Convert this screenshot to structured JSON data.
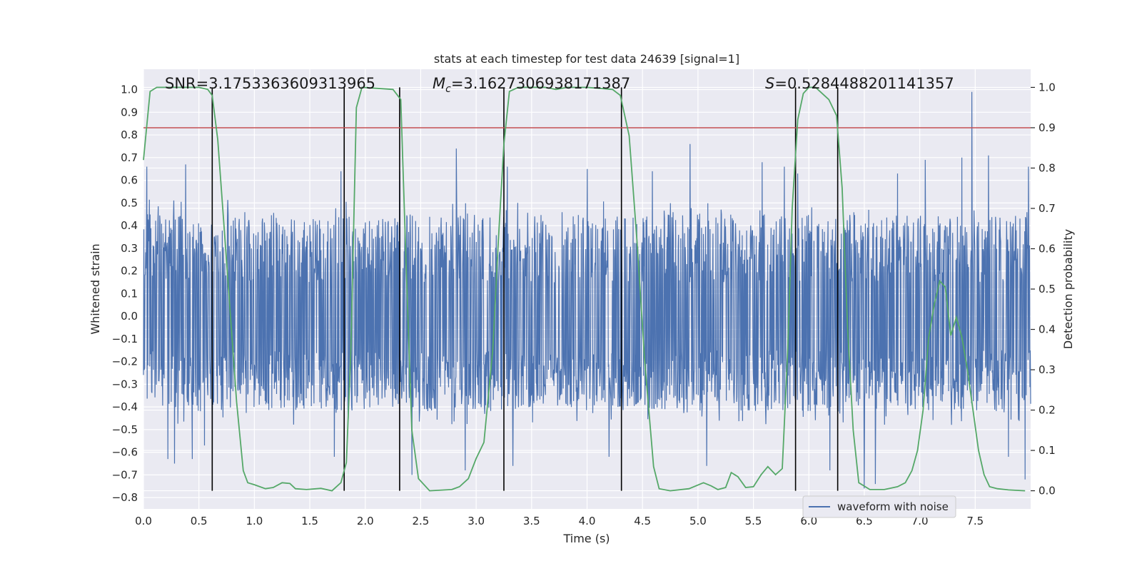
{
  "chart_data": {
    "type": "line",
    "title": "stats at each timestep for test data 24639 [signal=1]",
    "xlabel": "Time (s)",
    "ylabel": "Whitened strain",
    "y2label": "Detection probability",
    "xlim": [
      0.0,
      8.0
    ],
    "ylim": [
      -0.85,
      1.09
    ],
    "y2lim": [
      -0.045,
      1.045
    ],
    "x_ticks": [
      "0.0",
      "0.5",
      "1.0",
      "1.5",
      "2.0",
      "2.5",
      "3.0",
      "3.5",
      "4.0",
      "4.5",
      "5.0",
      "5.5",
      "6.0",
      "6.5",
      "7.0",
      "7.5"
    ],
    "y_ticks": [
      "1.0",
      "0.9",
      "0.8",
      "0.7",
      "0.6",
      "0.5",
      "0.4",
      "0.3",
      "0.2",
      "0.1",
      "0.0",
      "−0.1",
      "−0.2",
      "−0.3",
      "−0.4",
      "−0.5",
      "−0.6",
      "−0.7",
      "−0.8"
    ],
    "y2_ticks": [
      "1.0",
      "0.9",
      "0.8",
      "0.7",
      "0.6",
      "0.5",
      "0.4",
      "0.3",
      "0.2",
      "0.1",
      "0.0"
    ],
    "grid": true,
    "legend_position": "bottom-right",
    "annotations": {
      "snr": "SNR=3.1753363609313965",
      "mc_symbol": "M",
      "mc_sub": "c",
      "mc_value": "=3.1627306938171387",
      "s_symbol": "S",
      "s_value": "=0.5284488201141357"
    },
    "threshold_probability": 0.9,
    "event_boundaries": [
      0.62,
      1.81,
      2.31,
      3.25,
      4.31,
      5.88,
      6.26
    ],
    "series": [
      {
        "name": "waveform with noise",
        "axis": "left",
        "color": "#4c72b0",
        "style": "dense-noise",
        "typical_band": [
          -0.42,
          0.45
        ],
        "peak_extremes": [
          {
            "x": 0.03,
            "y": 0.66
          },
          {
            "x": 0.22,
            "y": -0.63
          },
          {
            "x": 0.28,
            "y": -0.65
          },
          {
            "x": 0.28,
            "y": 0.62
          },
          {
            "x": 0.38,
            "y": 0.67
          },
          {
            "x": 0.44,
            "y": -0.63
          },
          {
            "x": 0.55,
            "y": -0.57
          },
          {
            "x": 0.62,
            "y": -0.66
          },
          {
            "x": 1.78,
            "y": 0.64
          },
          {
            "x": 1.72,
            "y": -0.62
          },
          {
            "x": 2.31,
            "y": 0.64
          },
          {
            "x": 2.42,
            "y": -0.7
          },
          {
            "x": 2.82,
            "y": 0.74
          },
          {
            "x": 2.9,
            "y": -0.68
          },
          {
            "x": 3.28,
            "y": 0.66
          },
          {
            "x": 3.33,
            "y": -0.66
          },
          {
            "x": 4.0,
            "y": 0.65
          },
          {
            "x": 4.2,
            "y": -0.62
          },
          {
            "x": 4.59,
            "y": 0.64
          },
          {
            "x": 4.93,
            "y": 0.76
          },
          {
            "x": 5.08,
            "y": -0.66
          },
          {
            "x": 5.58,
            "y": 0.68
          },
          {
            "x": 5.78,
            "y": 0.66
          },
          {
            "x": 5.9,
            "y": 0.63
          },
          {
            "x": 6.19,
            "y": -0.68
          },
          {
            "x": 6.5,
            "y": -0.76
          },
          {
            "x": 6.6,
            "y": -0.74
          },
          {
            "x": 6.8,
            "y": 0.63
          },
          {
            "x": 7.05,
            "y": 0.69
          },
          {
            "x": 7.38,
            "y": 0.7
          },
          {
            "x": 7.47,
            "y": 0.99
          },
          {
            "x": 7.62,
            "y": 0.71
          },
          {
            "x": 7.8,
            "y": -0.62
          },
          {
            "x": 7.95,
            "y": -0.72
          },
          {
            "x": 7.98,
            "y": 0.66
          }
        ]
      },
      {
        "name": "",
        "axis": "right",
        "color": "#55a868",
        "points": [
          [
            0.0,
            0.82
          ],
          [
            0.06,
            0.99
          ],
          [
            0.12,
            1.0
          ],
          [
            0.5,
            1.0
          ],
          [
            0.58,
            0.995
          ],
          [
            0.62,
            0.98
          ],
          [
            0.67,
            0.87
          ],
          [
            0.72,
            0.68
          ],
          [
            0.78,
            0.45
          ],
          [
            0.84,
            0.22
          ],
          [
            0.9,
            0.05
          ],
          [
            0.94,
            0.02
          ],
          [
            1.0,
            0.015
          ],
          [
            1.1,
            0.005
          ],
          [
            1.17,
            0.008
          ],
          [
            1.25,
            0.02
          ],
          [
            1.32,
            0.018
          ],
          [
            1.37,
            0.005
          ],
          [
            1.47,
            0.003
          ],
          [
            1.6,
            0.006
          ],
          [
            1.7,
            0.0
          ],
          [
            1.78,
            0.02
          ],
          [
            1.83,
            0.07
          ],
          [
            1.87,
            0.35
          ],
          [
            1.92,
            0.95
          ],
          [
            1.97,
            1.0
          ],
          [
            2.25,
            0.995
          ],
          [
            2.32,
            0.97
          ],
          [
            2.37,
            0.55
          ],
          [
            2.42,
            0.15
          ],
          [
            2.48,
            0.03
          ],
          [
            2.58,
            0.0
          ],
          [
            2.78,
            0.003
          ],
          [
            2.85,
            0.01
          ],
          [
            2.93,
            0.03
          ],
          [
            3.0,
            0.08
          ],
          [
            3.07,
            0.12
          ],
          [
            3.15,
            0.35
          ],
          [
            3.2,
            0.62
          ],
          [
            3.25,
            0.86
          ],
          [
            3.3,
            0.99
          ],
          [
            3.38,
            1.0
          ],
          [
            3.55,
            1.0
          ],
          [
            3.62,
            1.0
          ],
          [
            3.72,
            0.995
          ],
          [
            3.82,
            1.0
          ],
          [
            4.0,
            1.0
          ],
          [
            4.23,
            0.995
          ],
          [
            4.3,
            0.98
          ],
          [
            4.38,
            0.88
          ],
          [
            4.45,
            0.62
          ],
          [
            4.52,
            0.32
          ],
          [
            4.6,
            0.06
          ],
          [
            4.65,
            0.005
          ],
          [
            4.75,
            0.0
          ],
          [
            4.92,
            0.005
          ],
          [
            5.05,
            0.02
          ],
          [
            5.12,
            0.012
          ],
          [
            5.18,
            0.003
          ],
          [
            5.25,
            0.008
          ],
          [
            5.3,
            0.045
          ],
          [
            5.36,
            0.035
          ],
          [
            5.43,
            0.008
          ],
          [
            5.5,
            0.01
          ],
          [
            5.57,
            0.04
          ],
          [
            5.63,
            0.06
          ],
          [
            5.7,
            0.04
          ],
          [
            5.76,
            0.055
          ],
          [
            5.81,
            0.35
          ],
          [
            5.85,
            0.7
          ],
          [
            5.9,
            0.92
          ],
          [
            5.95,
            0.985
          ],
          [
            6.0,
            1.0
          ],
          [
            6.06,
            1.0
          ],
          [
            6.12,
            0.985
          ],
          [
            6.18,
            0.97
          ],
          [
            6.25,
            0.93
          ],
          [
            6.3,
            0.75
          ],
          [
            6.35,
            0.4
          ],
          [
            6.4,
            0.15
          ],
          [
            6.45,
            0.02
          ],
          [
            6.55,
            0.003
          ],
          [
            6.68,
            0.003
          ],
          [
            6.8,
            0.01
          ],
          [
            6.87,
            0.02
          ],
          [
            6.93,
            0.05
          ],
          [
            6.98,
            0.1
          ],
          [
            7.03,
            0.2
          ],
          [
            7.08,
            0.38
          ],
          [
            7.13,
            0.46
          ],
          [
            7.18,
            0.52
          ],
          [
            7.23,
            0.505
          ],
          [
            7.28,
            0.385
          ],
          [
            7.33,
            0.43
          ],
          [
            7.38,
            0.38
          ],
          [
            7.43,
            0.3
          ],
          [
            7.48,
            0.2
          ],
          [
            7.53,
            0.1
          ],
          [
            7.58,
            0.04
          ],
          [
            7.63,
            0.01
          ],
          [
            7.7,
            0.005
          ],
          [
            7.8,
            0.002
          ],
          [
            7.95,
            0.0
          ]
        ]
      }
    ]
  }
}
